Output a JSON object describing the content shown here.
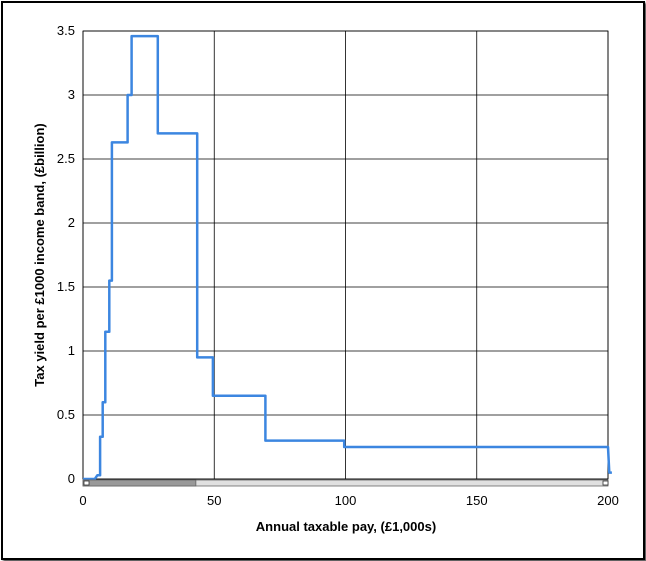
{
  "chart_data": {
    "type": "line",
    "title": "",
    "xlabel": "Annual taxable pay, (£1,000s)",
    "ylabel": "Tax yield per £1000 income band, (£billion)",
    "xlim": [
      0,
      200
    ],
    "ylim": [
      0,
      3.5
    ],
    "x_ticks": [
      "0",
      "50",
      "100",
      "150",
      "200"
    ],
    "y_ticks": [
      "0",
      "0.5",
      "1",
      "1.5",
      "2",
      "2.5",
      "3",
      "3.5"
    ],
    "grid": true,
    "line_color": "#3c86e0",
    "series": [
      {
        "x": [
          0,
          4.5,
          5.5,
          6.5,
          6.5,
          7.5,
          7.5,
          8.5,
          8.5,
          10,
          10,
          11,
          11,
          17,
          17,
          18.5,
          18.5,
          28.5,
          28.5,
          43.5,
          43.5,
          49.5,
          49.5,
          69.5,
          69.5,
          99.5,
          99.5,
          200,
          200.5,
          201.5
        ],
        "y": [
          0,
          0,
          0.03,
          0.03,
          0.33,
          0.33,
          0.6,
          0.6,
          1.15,
          1.15,
          1.55,
          1.55,
          2.63,
          2.63,
          3.0,
          3.0,
          3.46,
          3.46,
          2.7,
          2.7,
          0.95,
          0.95,
          0.65,
          0.65,
          0.3,
          0.3,
          0.25,
          0.25,
          0.05,
          0.05
        ]
      }
    ],
    "scrollbar": {
      "range_start": 0,
      "range_end": 200,
      "thumb_end": 43
    }
  }
}
